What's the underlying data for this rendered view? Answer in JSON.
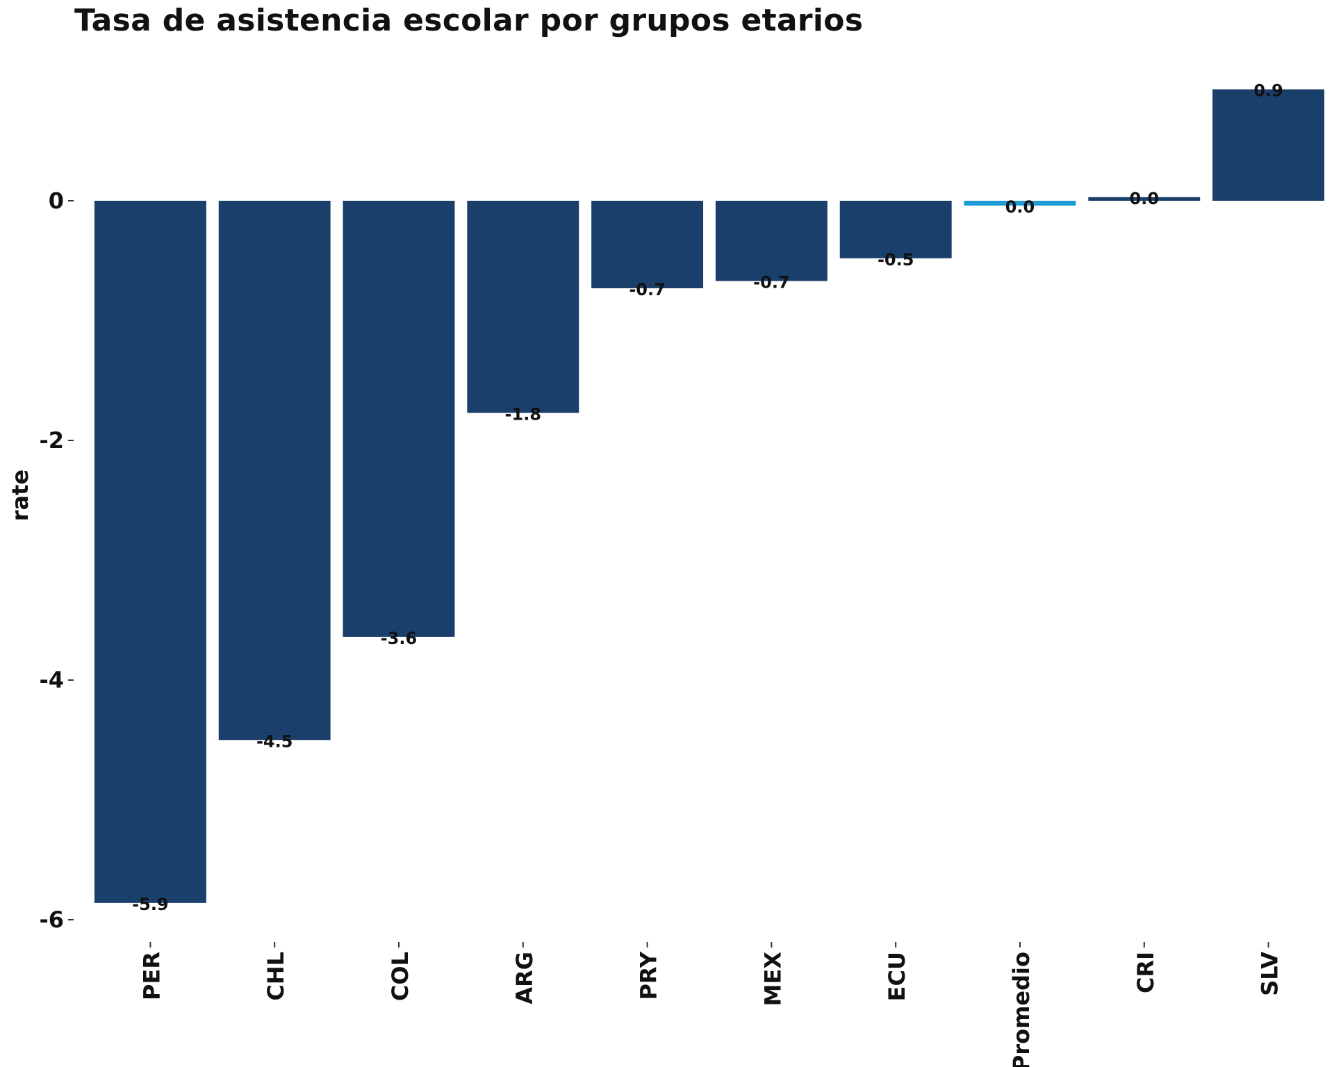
{
  "chart_data": {
    "type": "bar",
    "title": "Tasa de asistencia escolar por grupos etarios",
    "xlabel": "",
    "ylabel": "rate",
    "categories": [
      "PER",
      "CHL",
      "COL",
      "ARG",
      "PRY",
      "MEX",
      "ECU",
      "Promedio",
      "CRI",
      "SLV"
    ],
    "values": [
      -5.86,
      -4.5,
      -3.64,
      -1.77,
      -0.73,
      -0.67,
      -0.48,
      -0.04,
      0.03,
      0.93
    ],
    "data_labels": [
      "-5.9",
      "-4.5",
      "-3.6",
      "-1.8",
      "-0.7",
      "-0.7",
      "-0.5",
      "0.0",
      "0.0",
      "0.9"
    ],
    "highlight_category": "Promedio",
    "colors": {
      "bar": "#1b3f6b",
      "highlight": "#1e9ad6"
    },
    "ylim": [
      -6.2,
      1.05
    ],
    "yticks": [
      0,
      -2,
      -4,
      -6
    ],
    "ytick_labels": [
      "0",
      "-2",
      "-4",
      "-6"
    ],
    "grid": false,
    "legend": "none"
  }
}
